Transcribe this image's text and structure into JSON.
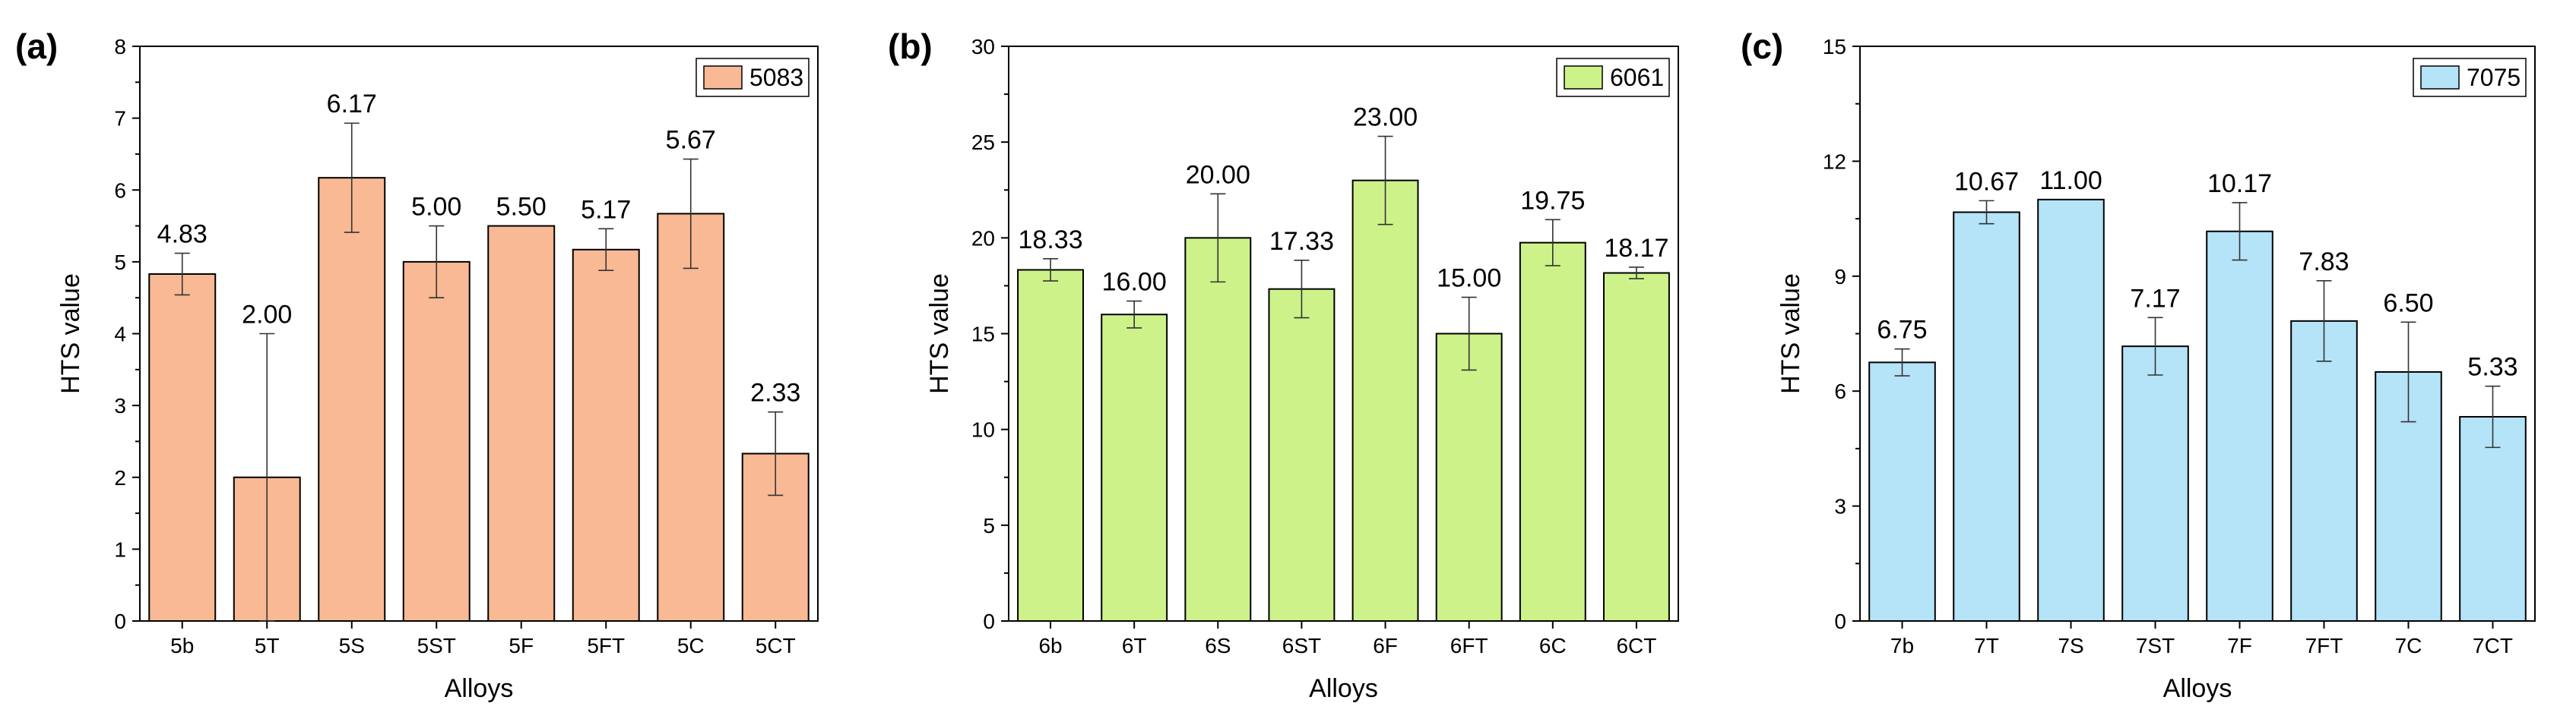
{
  "chart_data": [
    {
      "type": "bar",
      "panel_label": "(a)",
      "xlabel": "Alloys",
      "ylabel": "HTS value",
      "legend": "5083",
      "legend_position": "top-right",
      "color": "#f8b994",
      "ylim": [
        0,
        8
      ],
      "yticks": [
        "0",
        "1",
        "2",
        "3",
        "4",
        "5",
        "6",
        "7",
        "8"
      ],
      "categories": [
        "5b",
        "5T",
        "5S",
        "5ST",
        "5F",
        "5FT",
        "5C",
        "5CT"
      ],
      "values": [
        4.83,
        2.0,
        6.17,
        5.0,
        5.5,
        5.17,
        5.67,
        2.33
      ],
      "labels": [
        "4.83",
        "2.00",
        "6.17",
        "5.00",
        "5.50",
        "5.17",
        "5.67",
        "2.33"
      ],
      "errors": [
        0.29,
        2.0,
        0.76,
        0.5,
        0.0,
        0.29,
        0.76,
        0.58
      ]
    },
    {
      "type": "bar",
      "panel_label": "(b)",
      "xlabel": "Alloys",
      "ylabel": "HTS value",
      "legend": "6061",
      "legend_position": "top-right",
      "color": "#cdf28a",
      "ylim": [
        0,
        30
      ],
      "yticks": [
        "0",
        "5",
        "10",
        "15",
        "20",
        "25",
        "30"
      ],
      "categories": [
        "6b",
        "6T",
        "6S",
        "6ST",
        "6F",
        "6FT",
        "6C",
        "6CT"
      ],
      "values": [
        18.33,
        16.0,
        20.0,
        17.33,
        23.0,
        15.0,
        19.75,
        18.17
      ],
      "labels": [
        "18.33",
        "16.00",
        "20.00",
        "17.33",
        "23.00",
        "15.00",
        "19.75",
        "18.17"
      ],
      "errors": [
        0.58,
        0.7,
        2.3,
        1.5,
        2.3,
        1.9,
        1.2,
        0.3
      ]
    },
    {
      "type": "bar",
      "panel_label": "(c)",
      "xlabel": "Alloys",
      "ylabel": "HTS value",
      "legend": "7075",
      "legend_position": "top-right",
      "color": "#b5e3f8",
      "ylim": [
        0,
        15
      ],
      "yticks": [
        "0",
        "3",
        "6",
        "9",
        "12",
        "15"
      ],
      "categories": [
        "7b",
        "7T",
        "7S",
        "7ST",
        "7F",
        "7FT",
        "7C",
        "7CT"
      ],
      "values": [
        6.75,
        10.67,
        11.0,
        7.17,
        10.17,
        7.83,
        6.5,
        5.33
      ],
      "labels": [
        "6.75",
        "10.67",
        "11.00",
        "7.17",
        "10.17",
        "7.83",
        "6.50",
        "5.33"
      ],
      "errors": [
        0.35,
        0.3,
        0.0,
        0.75,
        0.75,
        1.05,
        1.3,
        0.8
      ]
    }
  ]
}
